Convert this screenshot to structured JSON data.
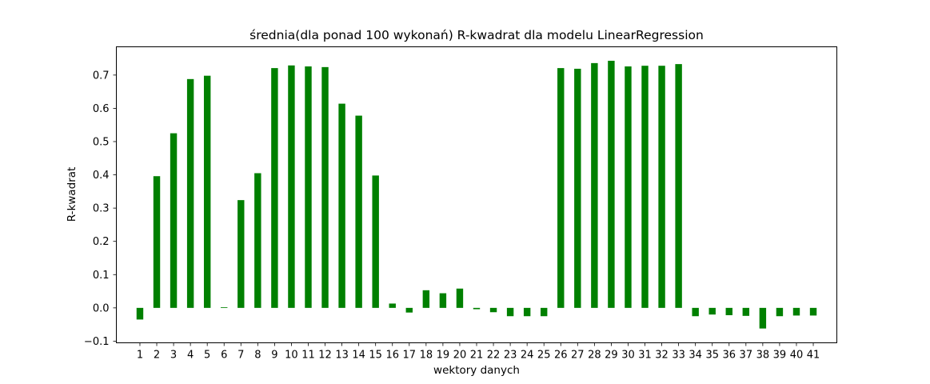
{
  "chart_data": {
    "type": "bar",
    "title": "średnia(dla ponad 100 wykonań) R-kwadrat dla modelu LinearRegression",
    "xlabel": "wektory danych",
    "ylabel": "R-kwadrat",
    "categories": [
      "1",
      "2",
      "3",
      "4",
      "5",
      "6",
      "7",
      "8",
      "9",
      "10",
      "11",
      "12",
      "13",
      "14",
      "15",
      "16",
      "17",
      "18",
      "19",
      "20",
      "21",
      "22",
      "23",
      "24",
      "25",
      "26",
      "27",
      "28",
      "29",
      "30",
      "31",
      "32",
      "33",
      "34",
      "35",
      "36",
      "37",
      "38",
      "39",
      "40",
      "41"
    ],
    "values": [
      -0.035,
      0.396,
      0.525,
      0.688,
      0.698,
      0.002,
      0.324,
      0.405,
      0.721,
      0.729,
      0.726,
      0.724,
      0.614,
      0.578,
      0.398,
      0.013,
      -0.014,
      0.053,
      0.044,
      0.058,
      -0.004,
      -0.013,
      -0.025,
      -0.025,
      -0.025,
      0.721,
      0.719,
      0.736,
      0.743,
      0.726,
      0.728,
      0.728,
      0.733,
      -0.025,
      -0.02,
      -0.022,
      -0.024,
      -0.062,
      -0.025,
      -0.023,
      -0.023
    ],
    "ylim": [
      -0.105,
      0.785
    ],
    "yticks": [
      -0.1,
      0.0,
      0.1,
      0.2,
      0.3,
      0.4,
      0.5,
      0.6,
      0.7
    ],
    "ytick_labels": [
      "−0.1",
      "0.0",
      "0.1",
      "0.2",
      "0.3",
      "0.4",
      "0.5",
      "0.6",
      "0.7"
    ],
    "bar_color": "#008000",
    "grid": false,
    "legend": "none"
  }
}
